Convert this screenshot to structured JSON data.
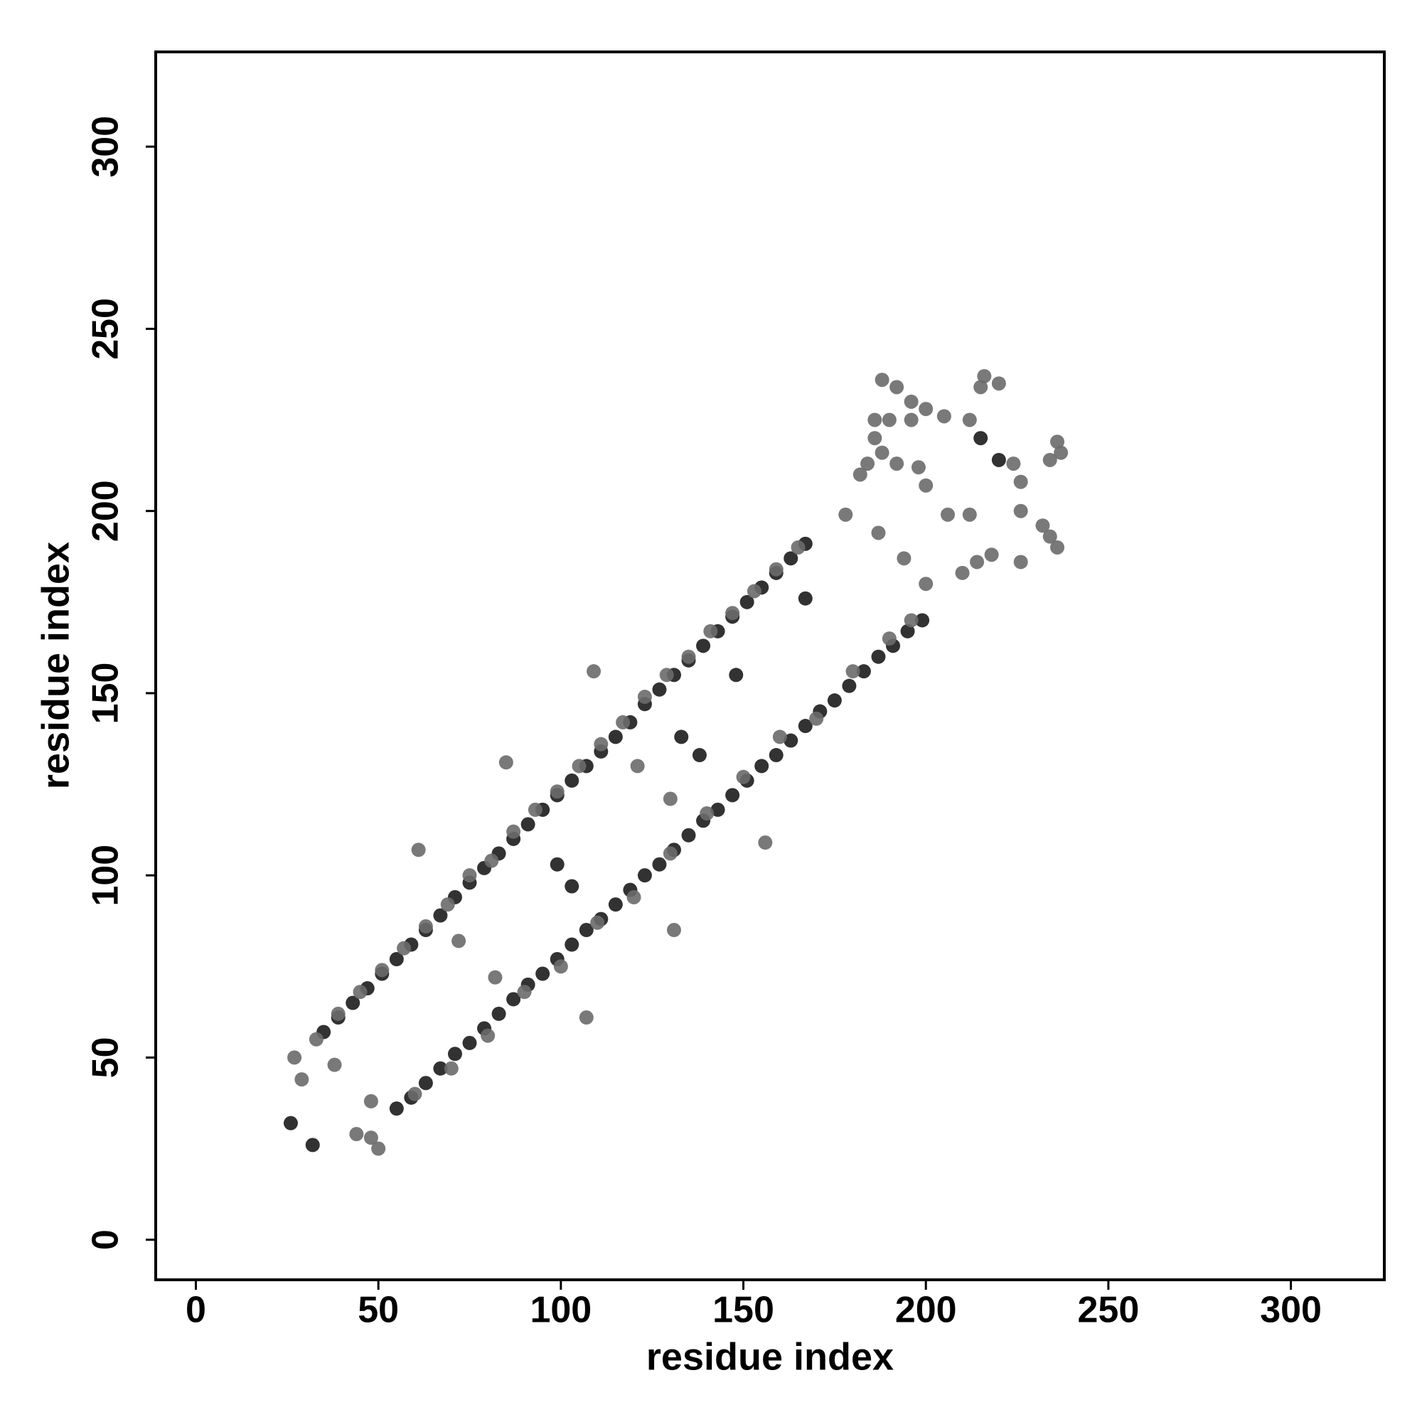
{
  "chart_data": {
    "type": "scatter",
    "x_label": "residue index",
    "y_label": "residue index",
    "xlim": [
      -11,
      325.6
    ],
    "ylim": [
      -11,
      326
    ],
    "xticks": [
      0,
      50,
      100,
      150,
      200,
      250,
      300
    ],
    "yticks": [
      0,
      50,
      100,
      150,
      200,
      250,
      300
    ],
    "grid": false,
    "series": [
      {
        "color": "#1c1c1c",
        "x": [
          35,
          39,
          43,
          47,
          51,
          55,
          59,
          63,
          67,
          71,
          75,
          79,
          83,
          87,
          91,
          95,
          99,
          103,
          107,
          111,
          115,
          119,
          123,
          127,
          131,
          135,
          139,
          143,
          147,
          151,
          155,
          159,
          163,
          167,
          55,
          59,
          63,
          67,
          71,
          75,
          79,
          83,
          87,
          91,
          95,
          99,
          103,
          107,
          111,
          115,
          119,
          123,
          127,
          131,
          135,
          139,
          143,
          147,
          151,
          155,
          159,
          163,
          167,
          171,
          175,
          179,
          183,
          187,
          191,
          195,
          199,
          32,
          26,
          133,
          138,
          103,
          99,
          167,
          148,
          215,
          220
        ],
        "values": [
          57,
          61,
          65,
          69,
          73,
          77,
          81,
          85,
          89,
          94,
          98,
          102,
          106,
          110,
          114,
          118,
          122,
          126,
          130,
          134,
          138,
          142,
          147,
          151,
          155,
          159,
          163,
          167,
          171,
          175,
          179,
          183,
          187,
          191,
          36,
          39,
          43,
          47,
          51,
          54,
          58,
          62,
          66,
          70,
          73,
          77,
          81,
          85,
          88,
          92,
          96,
          100,
          103,
          107,
          111,
          115,
          118,
          122,
          126,
          130,
          133,
          137,
          141,
          145,
          148,
          152,
          156,
          160,
          163,
          167,
          170,
          26,
          32,
          138,
          133,
          97,
          103,
          176,
          155,
          220,
          214
        ]
      },
      {
        "color": "#6a6a6a",
        "x": [
          27,
          33,
          39,
          45,
          51,
          57,
          63,
          69,
          75,
          81,
          87,
          93,
          99,
          105,
          111,
          117,
          123,
          129,
          135,
          141,
          147,
          153,
          159,
          165,
          50,
          48,
          60,
          70,
          80,
          90,
          100,
          110,
          120,
          130,
          140,
          150,
          160,
          170,
          180,
          190,
          196,
          188,
          192,
          196,
          200,
          186,
          190,
          196,
          205,
          212,
          216,
          220,
          215,
          184,
          188,
          186,
          192,
          198,
          200,
          182,
          224,
          226,
          236,
          234,
          237,
          206,
          212,
          218,
          210,
          214,
          226,
          232,
          236,
          234,
          226,
          178,
          187,
          194,
          200,
          109,
          85,
          61,
          107,
          131,
          156,
          121,
          130,
          72,
          82,
          29,
          44,
          38,
          48
        ],
        "values": [
          50,
          55,
          62,
          68,
          74,
          80,
          86,
          92,
          100,
          104,
          112,
          118,
          123,
          130,
          136,
          142,
          149,
          155,
          160,
          167,
          172,
          178,
          184,
          190,
          25,
          28,
          40,
          47,
          56,
          68,
          75,
          87,
          94,
          106,
          117,
          127,
          138,
          143,
          156,
          165,
          170,
          236,
          234,
          230,
          228,
          225,
          225,
          225,
          226,
          225,
          237,
          235,
          234,
          213,
          216,
          220,
          213,
          212,
          207,
          210,
          213,
          208,
          219,
          214,
          216,
          199,
          199,
          188,
          183,
          186,
          200,
          196,
          190,
          193,
          186,
          199,
          194,
          187,
          180,
          156,
          131,
          107,
          61,
          85,
          109,
          130,
          121,
          82,
          72,
          44,
          29,
          48,
          38
        ]
      }
    ]
  }
}
